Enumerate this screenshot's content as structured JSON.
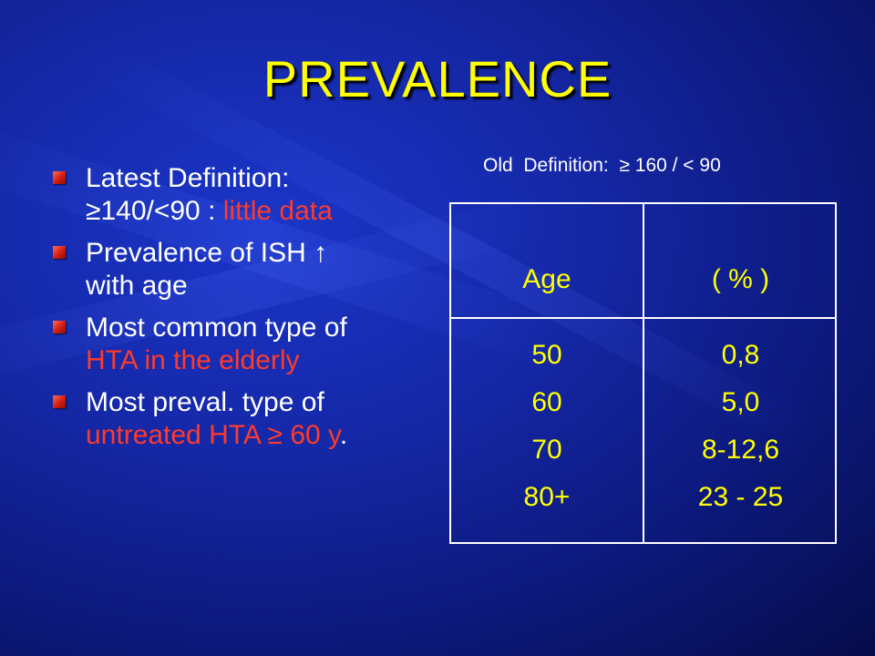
{
  "slide": {
    "title": "PREVALENCE",
    "old_definition": "Old  Definition:  ≥ 160 / < 90",
    "bullets": {
      "b1": {
        "line1": "Latest Definition:",
        "line2_white": "≥140/<90 : ",
        "line2_red": "little data"
      },
      "b2": {
        "line1": "Prevalence of ISH ↑",
        "line2": "with age"
      },
      "b3": {
        "line1": "Most common type of",
        "line2_red": "HTA in the elderly"
      },
      "b4": {
        "line1": "Most preval. type of",
        "line2_red": "untreated HTA ≥ 60 y",
        "line2_end": "."
      }
    },
    "table": {
      "header_age": "Age",
      "header_pct": "( % )",
      "rows": [
        {
          "age": "50",
          "pct": "0,8"
        },
        {
          "age": "60",
          "pct": "5,0"
        },
        {
          "age": "70",
          "pct": "8-12,6"
        },
        {
          "age": "80+",
          "pct": "23 - 25"
        }
      ]
    }
  },
  "colors": {
    "title": "#ffff00",
    "highlight_red": "#ff3a2a",
    "background": "#1528a8"
  }
}
